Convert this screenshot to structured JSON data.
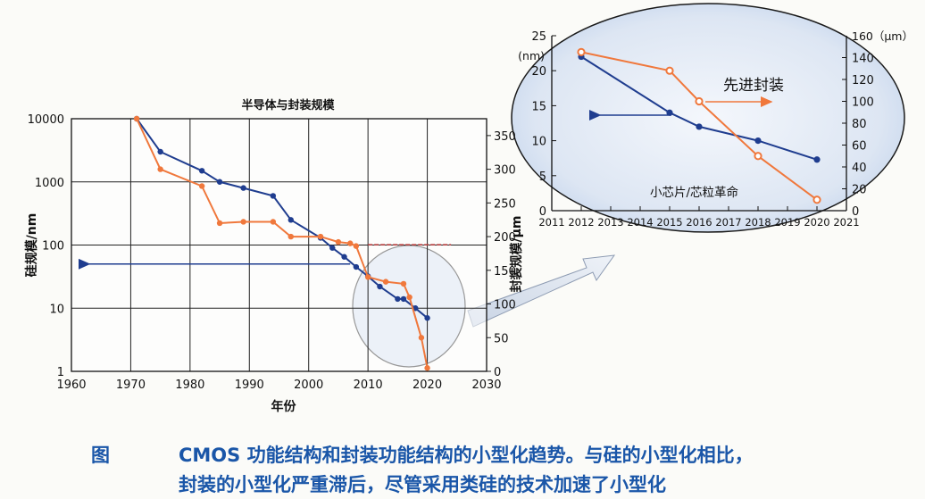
{
  "chart_data": [
    {
      "type": "line",
      "title": "半导体与封装规模",
      "xlabel": "年份",
      "ylabel": "硅规模/nm",
      "y2label": "封装规模/μm",
      "xlim": [
        1960,
        2030
      ],
      "ylim": [
        1,
        10000
      ],
      "y2lim": [
        0,
        375
      ],
      "yscale": "log",
      "grid": true,
      "x_ticks": [
        "1960",
        "1970",
        "1980",
        "1990",
        "2000",
        "2010",
        "2020",
        "2030"
      ],
      "y_ticks": [
        "1",
        "10",
        "100",
        "1000",
        "10000"
      ],
      "y2_ticks": [
        "0",
        "50",
        "100",
        "150",
        "200",
        "250",
        "300",
        "350"
      ],
      "series": [
        {
          "axis": "left",
          "color": "#1f3d8f",
          "marker": "circle",
          "points": [
            [
              1971,
              10000
            ],
            [
              1975,
              3000
            ],
            [
              1982,
              1500
            ],
            [
              1985,
              1000
            ],
            [
              1989,
              800
            ],
            [
              1994,
              600
            ],
            [
              1997,
              250
            ],
            [
              2002,
              130
            ],
            [
              2004,
              90
            ],
            [
              2006,
              65
            ],
            [
              2008,
              45
            ],
            [
              2010,
              32
            ],
            [
              2012,
              22
            ],
            [
              2015,
              14
            ],
            [
              2016,
              14
            ],
            [
              2018,
              10
            ],
            [
              2020,
              7
            ]
          ]
        },
        {
          "axis": "right",
          "color": "#f0783c",
          "marker": "circle",
          "points": [
            [
              1971,
              375
            ],
            [
              1975,
              300
            ],
            [
              1982,
              275
            ],
            [
              1985,
              220
            ],
            [
              1989,
              222
            ],
            [
              1994,
              222
            ],
            [
              1997,
              200
            ],
            [
              2002,
              200
            ],
            [
              2005,
              192
            ],
            [
              2007,
              190
            ],
            [
              2008,
              186
            ],
            [
              2010,
              140
            ],
            [
              2013,
              133
            ],
            [
              2016,
              130
            ],
            [
              2017,
              110
            ],
            [
              2019,
              50
            ],
            [
              2020,
              5
            ]
          ]
        }
      ],
      "annotations": [
        {
          "type": "arrow",
          "color": "#1f3d8f",
          "direction": "left",
          "x_from": 2007,
          "x_to": 1963,
          "y": 50
        },
        {
          "type": "line",
          "color": "#c04040",
          "x_from": 2010,
          "x_to": 2024,
          "y2": 188
        }
      ]
    },
    {
      "type": "line",
      "title": "",
      "xlim": [
        2011,
        2021
      ],
      "ylim": [
        0,
        25
      ],
      "y2lim": [
        0,
        160
      ],
      "yunit": "(nm)",
      "y2unit": "160（μm）",
      "x_ticks": [
        "2011",
        "2012",
        "2013",
        "2014",
        "2015",
        "2016",
        "2017",
        "2018",
        "2019",
        "2020",
        "2021"
      ],
      "y_ticks": [
        "0",
        "5",
        "10",
        "15",
        "20",
        "25"
      ],
      "y2_ticks": [
        "0",
        "20",
        "40",
        "60",
        "80",
        "100",
        "120",
        "140"
      ],
      "series": [
        {
          "axis": "left",
          "color": "#1f3d8f",
          "marker": "circle",
          "points": [
            [
              2012,
              22
            ],
            [
              2015,
              14
            ],
            [
              2016,
              12
            ],
            [
              2018,
              10
            ],
            [
              2020,
              7.3
            ]
          ]
        },
        {
          "axis": "right",
          "color": "#f0783c",
          "marker": "circle",
          "points": [
            [
              2012,
              145
            ],
            [
              2015,
              128
            ],
            [
              2016,
              100
            ],
            [
              2018,
              50
            ],
            [
              2020,
              10
            ]
          ]
        }
      ],
      "annotations": [
        {
          "text": "先进封装",
          "color": "#f0783c",
          "arrow": "right"
        },
        {
          "text": "小芯片/芯粒革命",
          "color": "#1f3d8f",
          "arrow": "left"
        }
      ]
    }
  ],
  "caption": {
    "label": "图",
    "line1": "CMOS 功能结构和封装功能结构的小型化趋势。与硅的小型化相比，",
    "line2": "封装的小型化严重滞后，尽管采用类硅的技术加速了小型化"
  },
  "colors": {
    "silicon": "#1f3d8f",
    "package": "#f0783c",
    "highlight": "#c9d8ee",
    "caption": "#1a56a8"
  }
}
